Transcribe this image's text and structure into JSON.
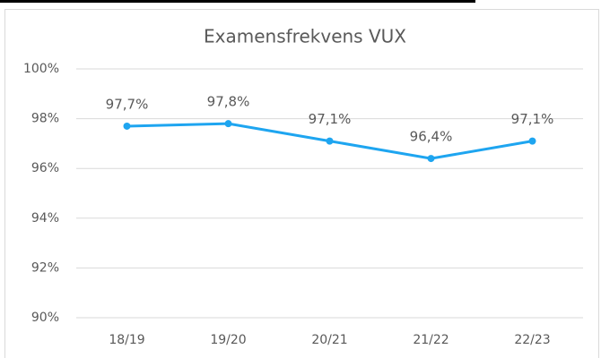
{
  "chart_data": {
    "type": "line",
    "title": "Examensfrekvens VUX",
    "categories": [
      "18/19",
      "19/20",
      "20/21",
      "21/22",
      "22/23"
    ],
    "series": [
      {
        "name": null,
        "color": "#1ea5f0",
        "values": [
          97.7,
          97.8,
          97.1,
          96.4,
          97.1
        ],
        "value_labels": [
          "97,7%",
          "97,8%",
          "97,1%",
          "96,4%",
          "97,1%"
        ]
      }
    ],
    "ylim": [
      90,
      100
    ],
    "yticks": [
      {
        "value": 90,
        "label": "90%"
      },
      {
        "value": 92,
        "label": "92%"
      },
      {
        "value": 94,
        "label": "94%"
      },
      {
        "value": 96,
        "label": "96%"
      },
      {
        "value": 98,
        "label": "98%"
      },
      {
        "value": 100,
        "label": "100%"
      }
    ],
    "grid": true
  }
}
